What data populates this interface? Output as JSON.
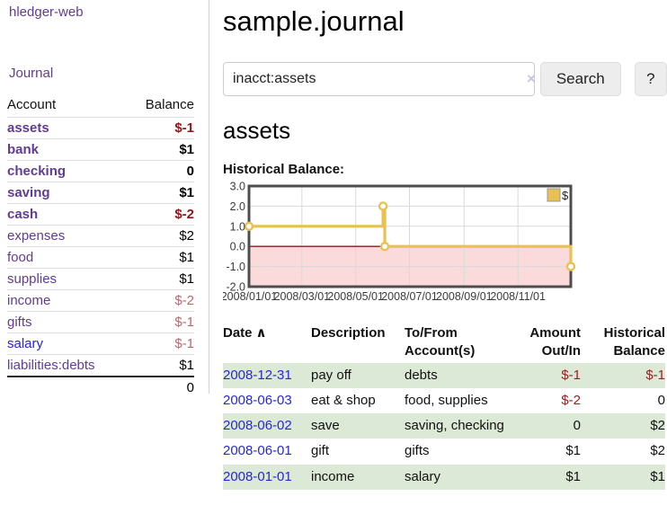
{
  "sidebar": {
    "brand": "hledger-web",
    "nav": {
      "journal": "Journal"
    },
    "accounts": {
      "col_account": "Account",
      "col_balance": "Balance",
      "rows": [
        {
          "name": "assets",
          "balance": "$-1",
          "indent": 1,
          "bold": true,
          "value_style": "neg-dark",
          "link_style": "purple"
        },
        {
          "name": "bank",
          "balance": "$1",
          "indent": 2,
          "bold": true,
          "value_style": "normal",
          "link_style": "purple"
        },
        {
          "name": "checking",
          "balance": "0",
          "indent": 3,
          "bold": true,
          "value_style": "normal",
          "link_style": "purple"
        },
        {
          "name": "saving",
          "balance": "$1",
          "indent": 3,
          "bold": true,
          "value_style": "normal",
          "link_style": "purple"
        },
        {
          "name": "cash",
          "balance": "$-2",
          "indent": 2,
          "bold": true,
          "value_style": "neg-dark",
          "link_style": "purple"
        },
        {
          "name": "expenses",
          "balance": "$2",
          "indent": 1,
          "bold": false,
          "value_style": "normal",
          "link_style": "purple"
        },
        {
          "name": "food",
          "balance": "$1",
          "indent": 2,
          "bold": false,
          "value_style": "normal",
          "link_style": "purple"
        },
        {
          "name": "supplies",
          "balance": "$1",
          "indent": 2,
          "bold": false,
          "value_style": "normal",
          "link_style": "purple"
        },
        {
          "name": "income",
          "balance": "$-2",
          "indent": 1,
          "bold": false,
          "value_style": "neg-light",
          "link_style": "purple"
        },
        {
          "name": "gifts",
          "balance": "$-1",
          "indent": 2,
          "bold": false,
          "value_style": "neg-light",
          "link_style": "purple"
        },
        {
          "name": "salary",
          "balance": "$-1",
          "indent": 2,
          "bold": false,
          "value_style": "neg-light",
          "link_style": "blue"
        },
        {
          "name": "liabilities:debts",
          "balance": "$1",
          "indent": 1,
          "bold": false,
          "value_style": "normal",
          "link_style": "purple"
        }
      ],
      "total": "0"
    }
  },
  "main": {
    "title": "sample.journal",
    "search": {
      "value": "inacct:assets",
      "clear_icon": "×",
      "button_label": "Search",
      "help_label": "?"
    },
    "account_heading": "assets",
    "chart_label": "Historical Balance:"
  },
  "chart_data": {
    "type": "line",
    "step": true,
    "title": "Historical Balance",
    "series": [
      {
        "name": "$",
        "color": "#e8c150",
        "points": [
          [
            "2008-01-01",
            1
          ],
          [
            "2008-06-01",
            2
          ],
          [
            "2008-06-03",
            0
          ],
          [
            "2008-12-31",
            -1
          ]
        ]
      }
    ],
    "xlim": [
      "2008-01-01",
      "2008-12-31"
    ],
    "ylim": [
      -2,
      3
    ],
    "yticks": [
      {
        "v": 3,
        "label": "3.0"
      },
      {
        "v": 2,
        "label": "2.0"
      },
      {
        "v": 1,
        "label": "1.0"
      },
      {
        "v": 0,
        "label": "0.0"
      },
      {
        "v": -1,
        "label": "-1.0"
      },
      {
        "v": -2,
        "label": "-2.0"
      }
    ],
    "xticks": [
      {
        "date": "2008-01-01",
        "label": "2008/01/01"
      },
      {
        "date": "2008-03-01",
        "label": "2008/03/01"
      },
      {
        "date": "2008-05-01",
        "label": "2008/05/01"
      },
      {
        "date": "2008-07-01",
        "label": "2008/07/01"
      },
      {
        "date": "2008-09-01",
        "label": "2008/09/01"
      },
      {
        "date": "2008-11-01",
        "label": "2008/11/01"
      }
    ],
    "legend": {
      "label": "$",
      "position": "top-right"
    },
    "grid": true,
    "colors": {
      "negative_region": "#fadada",
      "zero_line": "#8b1a1a",
      "grid_line": "#d9d9d9",
      "frame": "#4d4d4d",
      "tick_text": "#3a3a3a",
      "marker_fill": "#ffffff"
    }
  },
  "transactions": {
    "headers": {
      "date": "Date",
      "sort_icon": "∧",
      "description": "Description",
      "accounts": "To/From Account(s)",
      "amount": "Amount Out/In",
      "balance": "Historical Balance"
    },
    "rows": [
      {
        "date": "2008-12-31",
        "description": "pay off",
        "accounts": "debts",
        "amount": "$-1",
        "amount_style": "neg",
        "balance": "$-1",
        "balance_style": "neg"
      },
      {
        "date": "2008-06-03",
        "description": "eat & shop",
        "accounts": "food, supplies",
        "amount": "$-2",
        "amount_style": "neg",
        "balance": "0",
        "balance_style": "normal"
      },
      {
        "date": "2008-06-02",
        "description": "save",
        "accounts": "saving, checking",
        "amount": "0",
        "amount_style": "normal",
        "balance": "$2",
        "balance_style": "normal"
      },
      {
        "date": "2008-06-01",
        "description": "gift",
        "accounts": "gifts",
        "amount": "$1",
        "amount_style": "normal",
        "balance": "$2",
        "balance_style": "normal"
      },
      {
        "date": "2008-01-01",
        "description": "income",
        "accounts": "salary",
        "amount": "$1",
        "amount_style": "normal",
        "balance": "$1",
        "balance_style": "normal"
      }
    ]
  }
}
